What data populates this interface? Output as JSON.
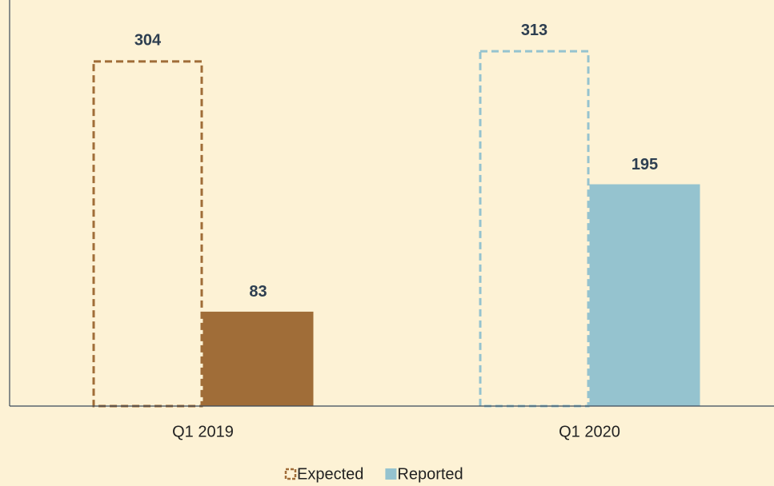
{
  "chart_data": {
    "type": "bar",
    "categories": [
      "Q1 2019",
      "Q1 2020"
    ],
    "series": [
      {
        "name": "Expected",
        "color": "#a06d38",
        "colors": [
          "#a06d38",
          "#95c3cf"
        ],
        "style": "dashed",
        "values": [
          304,
          313
        ]
      },
      {
        "name": "Reported",
        "color": "#95c3cf",
        "colors": [
          "#a06d38",
          "#95c3cf"
        ],
        "style": "solid",
        "values": [
          83,
          195
        ]
      }
    ],
    "ylim": [
      0,
      357
    ],
    "grid": false,
    "legend": "bottom"
  }
}
